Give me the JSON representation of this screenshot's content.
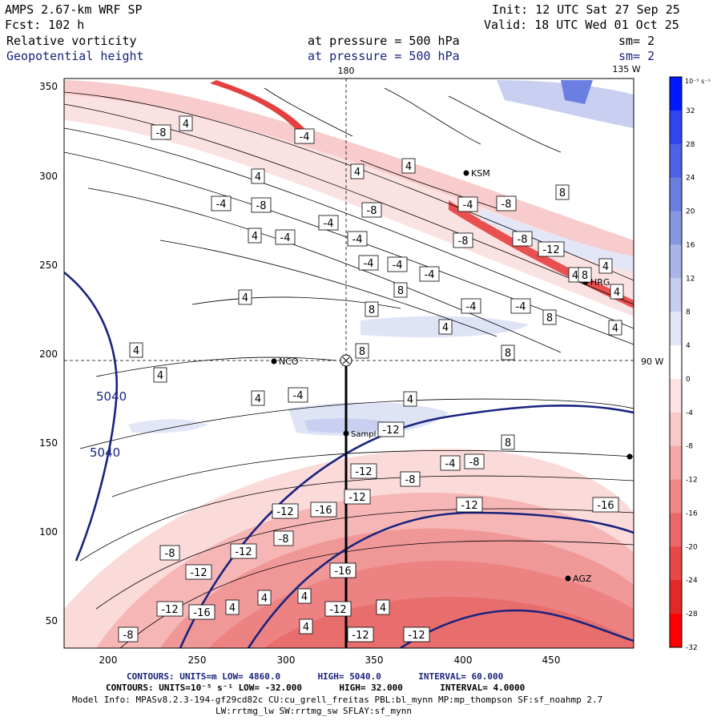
{
  "header": {
    "model": "AMPS 2.67-km WRF SP",
    "forecast": "Fcst:  102 h",
    "init": "Init: 12 UTC Sat 27 Sep 25",
    "valid": "Valid: 18 UTC Wed 01 Oct 25",
    "field1_name": "Relative vorticity",
    "field1_level": "at pressure =  500 hPa",
    "field1_sm": "sm= 2",
    "field2_name": "Geopotential height",
    "field2_level": "at pressure =  500 hPa",
    "field2_sm": "sm= 2"
  },
  "map": {
    "top_labels": [
      "180",
      "135 W"
    ],
    "right_label": "90 W",
    "x_ticks": [
      "200",
      "250",
      "300",
      "350",
      "400",
      "450"
    ],
    "y_ticks": [
      "350",
      "300",
      "250",
      "200",
      "150",
      "100",
      "50"
    ],
    "stations": [
      "NCO",
      "KSM",
      "HRG",
      "AGZ",
      "Sampl"
    ],
    "height_contour_labels": [
      "5040",
      "5040"
    ],
    "vorticity_labels": [
      "4",
      "-8",
      "-4",
      "4",
      "-4",
      "-8",
      "4",
      "4",
      "-4",
      "-8",
      "-4",
      "4",
      "-4",
      "-4",
      "-8",
      "-8",
      "-8",
      "8",
      "4",
      "8",
      "-12",
      "4",
      "4",
      "-4",
      "-4",
      "-4",
      "8",
      "-4",
      "-4",
      "8",
      "4",
      "4",
      "4",
      "8",
      "8",
      "8",
      "4",
      "4",
      "-4",
      "4",
      "4",
      "-12",
      "-12",
      "-8",
      "-4",
      "-8",
      "8",
      "-16",
      "-12",
      "-12",
      "-16",
      "-12",
      "-8",
      "-12",
      "-8",
      "-12",
      "-16",
      "-12",
      "-12",
      "-16",
      "4",
      "4",
      "4",
      "4",
      "4",
      "-12",
      "-12",
      "-8"
    ],
    "colors": {
      "height_contour": "#1a237e",
      "vorticity_neg": "#e53935",
      "vorticity_pos": "#3949ab"
    }
  },
  "colorbar": {
    "unit": "10⁻⁵ s⁻¹",
    "labels": [
      "32",
      "28",
      "24",
      "20",
      "16",
      "12",
      "8",
      "4",
      "0",
      "-4",
      "-8",
      "-12",
      "-16",
      "-20",
      "-24",
      "-28",
      "-32"
    ],
    "colors": [
      "#0019ff",
      "#2f45f0",
      "#4d62e6",
      "#6b7fe0",
      "#8898e0",
      "#a9b4e8",
      "#c6ceef",
      "#e2e6f7",
      "#ffffff",
      "#fde4e4",
      "#f9c8c8",
      "#f5a8a8",
      "#f08888",
      "#ec6868",
      "#e84848",
      "#e42828",
      "#ff0000"
    ]
  },
  "footer": {
    "contours1_lead": "CONTOURS:  UNITS=m  LOW=",
    "contours1_low": "4860.0",
    "contours1_high_lbl": "HIGH=",
    "contours1_high": "5040.0",
    "contours1_int_lbl": "INTERVAL=",
    "contours1_int": "60.000",
    "contours2_lead": "CONTOURS:  UNITS=10⁻⁵ s⁻¹  LOW=",
    "contours2_low": "-32.000",
    "contours2_high_lbl": "HIGH=",
    "contours2_high": "32.000",
    "contours2_int_lbl": "INTERVAL=",
    "contours2_int": "4.0000",
    "model_info": "Model Info: MPASv8.2.3-194-gf29cd82c CU:cu_grell_freitas PBL:bl_mynn MP:mp_thompson SF:sf_noahmp 2.7",
    "model_info2": "LW:rrtmg_lw SW:rrtmg_sw SFLAY:sf_mynn"
  }
}
